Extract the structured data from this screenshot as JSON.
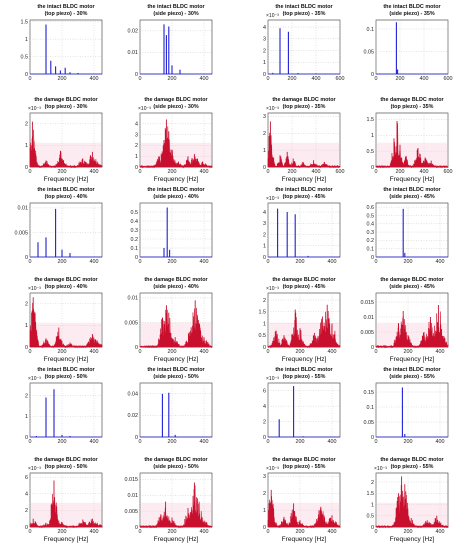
{
  "figure": {
    "xlabel": "Frequency [Hz]",
    "panels": [
      {
        "id": "p1",
        "title": [
          "the intact BLDC motor",
          "(top piezo) - 30%"
        ],
        "kind": "intact",
        "xticks": [
          "0",
          "200",
          "400"
        ],
        "yticks": [
          "0",
          "0.5",
          "1",
          "1.5"
        ],
        "exp": "",
        "showX": false,
        "xmax": 450,
        "ymax": 1.55,
        "spikes": [
          [
            100,
            1.42
          ],
          [
            130,
            0.38
          ],
          [
            160,
            0.22
          ],
          [
            190,
            0.1
          ],
          [
            220,
            0.18
          ],
          [
            250,
            0.05
          ],
          [
            300,
            0.03
          ]
        ]
      },
      {
        "id": "p2",
        "title": [
          "the intact BLDC motor",
          "(side piezo) - 30%"
        ],
        "kind": "intact",
        "xticks": [
          "0",
          "200",
          "400"
        ],
        "yticks": [
          "0",
          "0.01",
          "0.02"
        ],
        "exp": "",
        "showX": false,
        "xmax": 450,
        "ymax": 0.025,
        "spikes": [
          [
            150,
            0.023
          ],
          [
            165,
            0.018
          ],
          [
            180,
            0.022
          ],
          [
            200,
            0.004
          ],
          [
            250,
            0.002
          ]
        ]
      },
      {
        "id": "p3",
        "title": [
          "the intact BLDC motor",
          "(top piezo) - 35%"
        ],
        "kind": "intact",
        "xticks": [
          "0",
          "200",
          "400",
          "600"
        ],
        "yticks": [
          "0",
          "1",
          "2",
          "3",
          "4"
        ],
        "exp": "×10⁻³",
        "showX": false,
        "xmax": 600,
        "ymax": 4.6,
        "spikes": [
          [
            40,
            0.1
          ],
          [
            100,
            3.9
          ],
          [
            170,
            3.6
          ],
          [
            250,
            0.08
          ],
          [
            400,
            0.05
          ]
        ]
      },
      {
        "id": "p4",
        "title": [
          "the intact BLDC motor",
          "(side piezo) - 35%"
        ],
        "kind": "intact",
        "xticks": [
          "0",
          "200",
          "400",
          "600"
        ],
        "yticks": [
          "0",
          "0.05",
          "0.1"
        ],
        "exp": "",
        "showX": false,
        "xmax": 600,
        "ymax": 0.12,
        "spikes": [
          [
            170,
            0.115
          ],
          [
            180,
            0.01
          ]
        ]
      },
      {
        "id": "p5",
        "title": [
          "the damage BLDC motor",
          "(top piezo) - 30%"
        ],
        "kind": "damage",
        "xticks": [
          "0",
          "200",
          "400"
        ],
        "yticks": [
          "0",
          "1",
          "2"
        ],
        "exp": "×10⁻³",
        "showX": true,
        "xmax": 450,
        "ymax": 2.5,
        "spikes": [
          [
            15,
            2.1
          ],
          [
            100,
            0.3
          ],
          [
            190,
            0.75
          ],
          [
            210,
            0.3
          ],
          [
            330,
            0.4
          ],
          [
            390,
            0.7
          ],
          [
            420,
            0.25
          ]
        ]
      },
      {
        "id": "p6",
        "title": [
          "the damage BLDC motor",
          "(side piezo) - 30%"
        ],
        "kind": "damage",
        "xticks": [
          "0",
          "200",
          "400"
        ],
        "yticks": [
          "0",
          "1",
          "2",
          "3",
          "4"
        ],
        "exp": "×10⁻³",
        "showX": true,
        "xmax": 450,
        "ymax": 5,
        "spikes": [
          [
            120,
            1.0
          ],
          [
            150,
            2.5
          ],
          [
            165,
            4.4
          ],
          [
            180,
            3.3
          ],
          [
            200,
            1.6
          ],
          [
            240,
            0.5
          ],
          [
            300,
            1.0
          ],
          [
            340,
            1.2
          ],
          [
            390,
            0.5
          ]
        ]
      },
      {
        "id": "p7",
        "title": [
          "the damage BLDC motor",
          "(top piezo) - 35%"
        ],
        "kind": "damage",
        "xticks": [
          "0",
          "200",
          "400",
          "600"
        ],
        "yticks": [
          "0",
          "1",
          "2",
          "3"
        ],
        "exp": "×10⁻³",
        "showX": true,
        "xmax": 600,
        "ymax": 3.2,
        "spikes": [
          [
            20,
            2.7
          ],
          [
            100,
            0.7
          ],
          [
            160,
            0.9
          ],
          [
            210,
            0.5
          ],
          [
            290,
            0.3
          ],
          [
            380,
            0.4
          ],
          [
            470,
            0.3
          ]
        ]
      },
      {
        "id": "p8",
        "title": [
          "the damage BLDC motor",
          "(top piezo) - 35%"
        ],
        "kind": "damage",
        "xticks": [
          "0",
          "200",
          "400",
          "600"
        ],
        "yticks": [
          "0",
          "0.5",
          "1",
          "1.5"
        ],
        "exp": "",
        "showX": true,
        "xmax": 600,
        "ymax": 1.7,
        "spikes": [
          [
            150,
            0.9
          ],
          [
            175,
            1.45
          ],
          [
            200,
            0.7
          ],
          [
            250,
            0.35
          ],
          [
            350,
            0.6
          ],
          [
            410,
            0.3
          ],
          [
            460,
            0.2
          ]
        ]
      },
      {
        "id": "p9",
        "title": [
          "the intact BLDC motor",
          "(top piezo) - 40%"
        ],
        "kind": "intact",
        "xticks": [
          "0",
          "200",
          "400"
        ],
        "yticks": [
          "0",
          "0.005",
          "0.01"
        ],
        "exp": "",
        "showX": false,
        "xmax": 450,
        "ymax": 0.011,
        "spikes": [
          [
            50,
            0.003
          ],
          [
            100,
            0.004
          ],
          [
            160,
            0.0098
          ],
          [
            200,
            0.0015
          ],
          [
            250,
            0.0008
          ]
        ]
      },
      {
        "id": "p10",
        "title": [
          "the intact BLDC motor",
          "(side piezo) - 40%"
        ],
        "kind": "intact",
        "xticks": [
          "0",
          "200",
          "400"
        ],
        "yticks": [
          "0",
          "0.1",
          "0.2",
          "0.3",
          "0.4",
          "0.5"
        ],
        "exp": "",
        "showX": false,
        "xmax": 450,
        "ymax": 0.6,
        "spikes": [
          [
            150,
            0.1
          ],
          [
            170,
            0.55
          ],
          [
            185,
            0.08
          ]
        ]
      },
      {
        "id": "p11",
        "title": [
          "the intact BLDC motor",
          "(top piezo) - 45%"
        ],
        "kind": "intact",
        "xticks": [
          "0",
          "200",
          "400"
        ],
        "yticks": [
          "0",
          "1",
          "2",
          "3",
          "4"
        ],
        "exp": "×10⁻³",
        "showX": false,
        "xmax": 450,
        "ymax": 4.8,
        "spikes": [
          [
            60,
            4.3
          ],
          [
            120,
            4.0
          ],
          [
            170,
            3.8
          ],
          [
            250,
            0.1
          ]
        ]
      },
      {
        "id": "p12",
        "title": [
          "the intact BLDC motor",
          "(side piezo) - 45%"
        ],
        "kind": "intact",
        "xticks": [
          "0",
          "200",
          "400"
        ],
        "yticks": [
          "0",
          "0.1",
          "0.2",
          "0.3",
          "0.4",
          "0.5",
          "0.6"
        ],
        "exp": "",
        "showX": false,
        "xmax": 450,
        "ymax": 0.65,
        "spikes": [
          [
            170,
            0.58
          ],
          [
            180,
            0.05
          ]
        ]
      },
      {
        "id": "p13",
        "title": [
          "the damage BLDC motor",
          "(top piezo) - 40%"
        ],
        "kind": "damage",
        "xticks": [
          "0",
          "200",
          "400"
        ],
        "yticks": [
          "0",
          "1",
          "2"
        ],
        "exp": "×10⁻³",
        "showX": true,
        "xmax": 450,
        "ymax": 2.5,
        "spikes": [
          [
            20,
            2.3
          ],
          [
            100,
            0.4
          ],
          [
            180,
            0.9
          ],
          [
            250,
            0.2
          ],
          [
            390,
            0.6
          ],
          [
            420,
            0.3
          ]
        ]
      },
      {
        "id": "p14",
        "title": [
          "the damage BLDC motor",
          "(side piezo) - 40%"
        ],
        "kind": "damage",
        "xticks": [
          "0",
          "200",
          "400"
        ],
        "yticks": [
          "0",
          "0.005",
          "0.01"
        ],
        "exp": "",
        "showX": true,
        "xmax": 450,
        "ymax": 0.011,
        "spikes": [
          [
            140,
            0.006
          ],
          [
            165,
            0.0085
          ],
          [
            180,
            0.007
          ],
          [
            220,
            0.002
          ],
          [
            320,
            0.004
          ],
          [
            345,
            0.0095
          ],
          [
            360,
            0.006
          ],
          [
            400,
            0.002
          ]
        ]
      },
      {
        "id": "p15",
        "title": [
          "the damage BLDC motor",
          "(top piezo) - 45%"
        ],
        "kind": "damage",
        "xticks": [
          "0",
          "200",
          "400"
        ],
        "yticks": [
          "0",
          "0.5",
          "1",
          "1.5",
          "2"
        ],
        "exp": "×10⁻³",
        "showX": true,
        "xmax": 450,
        "ymax": 2.3,
        "spikes": [
          [
            50,
            0.7
          ],
          [
            100,
            0.5
          ],
          [
            170,
            1.6
          ],
          [
            200,
            0.8
          ],
          [
            290,
            0.6
          ],
          [
            340,
            1.3
          ],
          [
            370,
            1.8
          ],
          [
            400,
            1.0
          ]
        ]
      },
      {
        "id": "p16",
        "title": [
          "the damage BLDC motor",
          "(side piezo) - 45%"
        ],
        "kind": "damage",
        "xticks": [
          "0",
          "200",
          "400"
        ],
        "yticks": [
          "0",
          "0.005",
          "0.01",
          "0.015"
        ],
        "exp": "",
        "showX": true,
        "xmax": 450,
        "ymax": 0.018,
        "spikes": [
          [
            140,
            0.008
          ],
          [
            170,
            0.012
          ],
          [
            200,
            0.004
          ],
          [
            300,
            0.005
          ],
          [
            340,
            0.01
          ],
          [
            390,
            0.014
          ],
          [
            410,
            0.006
          ]
        ]
      },
      {
        "id": "p17",
        "title": [
          "the intact BLDC motor",
          "(top piezo) - 50%"
        ],
        "kind": "intact",
        "xticks": [
          "0",
          "200",
          "400"
        ],
        "yticks": [
          "0",
          "1",
          "2"
        ],
        "exp": "×10⁻³",
        "showX": false,
        "xmax": 450,
        "ymax": 2.6,
        "spikes": [
          [
            40,
            0.05
          ],
          [
            100,
            1.9
          ],
          [
            150,
            2.3
          ],
          [
            200,
            0.1
          ],
          [
            250,
            0.05
          ]
        ]
      },
      {
        "id": "p18",
        "title": [
          "the intact BLDC motor",
          "(side piezo) - 50%"
        ],
        "kind": "intact",
        "xticks": [
          "0",
          "200",
          "400"
        ],
        "yticks": [
          "0",
          "0.02",
          "0.04"
        ],
        "exp": "",
        "showX": false,
        "xmax": 450,
        "ymax": 0.05,
        "spikes": [
          [
            140,
            0.04
          ],
          [
            180,
            0.041
          ],
          [
            220,
            0.002
          ]
        ]
      },
      {
        "id": "p19",
        "title": [
          "the intact BLDC motor",
          "(top piezo) - 55%"
        ],
        "kind": "intact",
        "xticks": [
          "0",
          "200",
          "400"
        ],
        "yticks": [
          "0",
          "2",
          "4",
          "6"
        ],
        "exp": "×10⁻³",
        "showX": false,
        "xmax": 450,
        "ymax": 7,
        "spikes": [
          [
            70,
            2.3
          ],
          [
            160,
            6.6
          ],
          [
            220,
            0.1
          ]
        ]
      },
      {
        "id": "p20",
        "title": [
          "the intact BLDC motor",
          "(side piezo) - 55%"
        ],
        "kind": "intact",
        "xticks": [
          "0",
          "200",
          "400"
        ],
        "yticks": [
          "0",
          "0.05",
          "0.1",
          "0.15"
        ],
        "exp": "",
        "showX": false,
        "xmax": 450,
        "ymax": 0.18,
        "spikes": [
          [
            165,
            0.165
          ],
          [
            180,
            0.01
          ]
        ]
      },
      {
        "id": "p21",
        "title": [
          "the damage BLDC motor",
          "(top piezo) - 50%"
        ],
        "kind": "damage",
        "xticks": [
          "0",
          "200",
          "400"
        ],
        "yticks": [
          "0",
          "2",
          "4",
          "6"
        ],
        "exp": "×10⁻³",
        "showX": true,
        "xmax": 450,
        "ymax": 6.5,
        "spikes": [
          [
            20,
            1.0
          ],
          [
            100,
            0.5
          ],
          [
            150,
            5.6
          ],
          [
            200,
            0.6
          ],
          [
            330,
            0.9
          ],
          [
            390,
            1.0
          ],
          [
            420,
            0.5
          ]
        ]
      },
      {
        "id": "p22",
        "title": [
          "the damage BLDC motor",
          "(side piezo) - 50%"
        ],
        "kind": "damage",
        "xticks": [
          "0",
          "200",
          "400"
        ],
        "yticks": [
          "0",
          "0.005",
          "0.01",
          "0.015"
        ],
        "exp": "",
        "showX": true,
        "xmax": 450,
        "ymax": 0.017,
        "spikes": [
          [
            130,
            0.004
          ],
          [
            160,
            0.008
          ],
          [
            200,
            0.003
          ],
          [
            300,
            0.006
          ],
          [
            340,
            0.014
          ],
          [
            360,
            0.009
          ],
          [
            400,
            0.002
          ]
        ]
      },
      {
        "id": "p23",
        "title": [
          "the damage BLDC motor",
          "(top piezo) - 55%"
        ],
        "kind": "damage",
        "xticks": [
          "0",
          "200",
          "400"
        ],
        "yticks": [
          "0",
          "1",
          "2",
          "3"
        ],
        "exp": "×10⁻³",
        "showX": true,
        "xmax": 450,
        "ymax": 3.2,
        "spikes": [
          [
            20,
            2.2
          ],
          [
            100,
            0.6
          ],
          [
            160,
            1.4
          ],
          [
            200,
            0.4
          ],
          [
            330,
            1.2
          ],
          [
            400,
            0.7
          ]
        ]
      },
      {
        "id": "p24",
        "title": [
          "the damage BLDC motor",
          "(top piezo) - 55%"
        ],
        "kind": "damage",
        "xticks": [
          "0",
          "200",
          "400"
        ],
        "yticks": [
          "0",
          "0.5",
          "1",
          "1.5",
          "2"
        ],
        "exp": "×10⁻³",
        "showX": true,
        "xmax": 450,
        "ymax": 2.4,
        "spikes": [
          [
            140,
            1.5
          ],
          [
            160,
            2.25
          ],
          [
            180,
            1.9
          ],
          [
            220,
            0.4
          ],
          [
            320,
            0.3
          ],
          [
            380,
            0.5
          ]
        ]
      }
    ]
  },
  "chart_data": {
    "type": "bar",
    "xlabel": "Frequency [Hz]",
    "grid": true,
    "colors": {
      "intact": "#1f1fd6",
      "damage": "#c8102e",
      "damage_band": "#f5c6d8"
    }
  }
}
